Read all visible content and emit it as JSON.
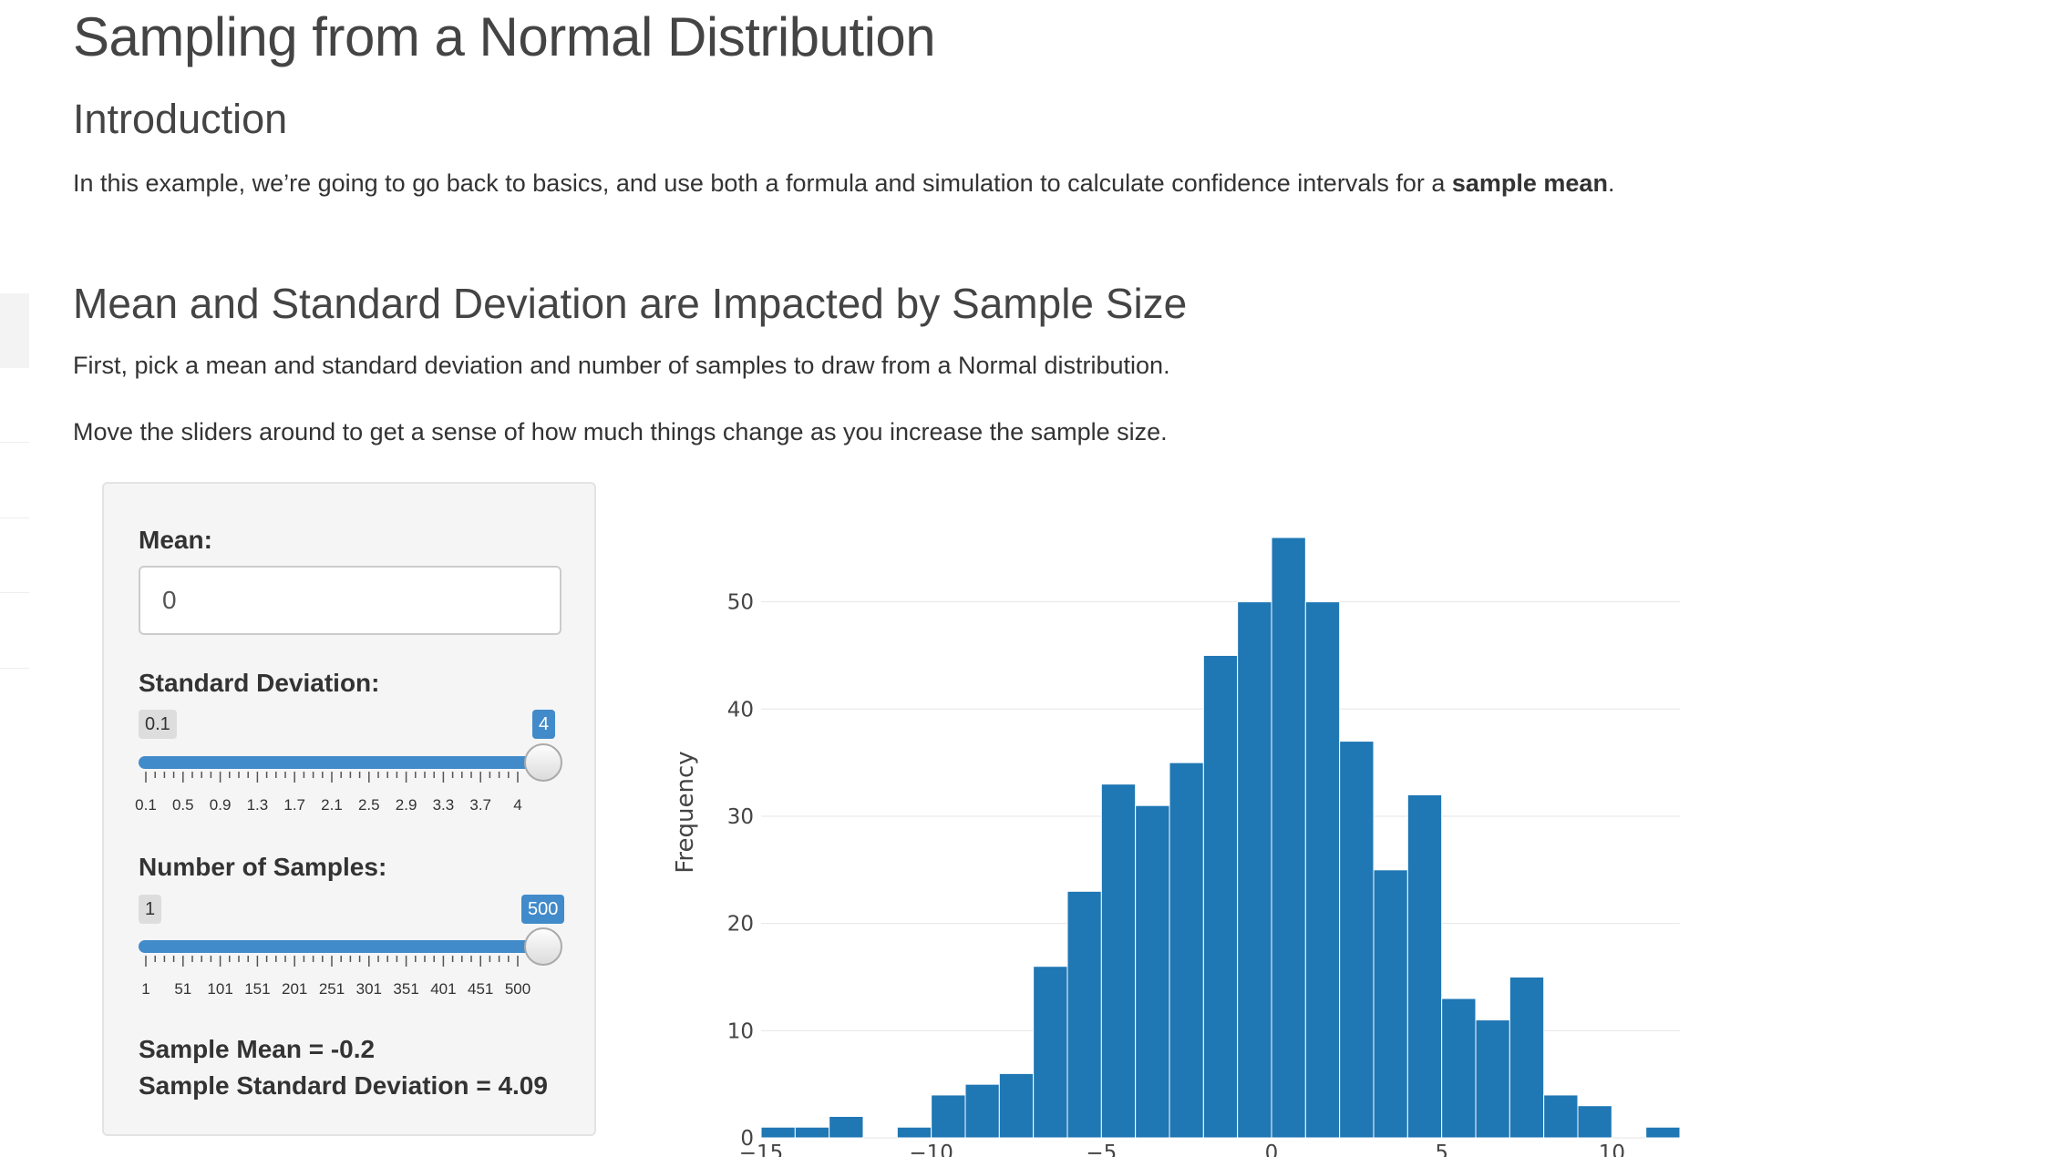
{
  "page": {
    "title": "Sampling from a Normal Distribution",
    "intro_heading": "Introduction",
    "intro_text_pre": "In this example, we’re going to go back to basics, and use both a formula and simulation to calculate confidence intervals for a ",
    "intro_text_bold": "sample mean",
    "intro_text_post": ".",
    "section_heading": "Mean and Standard Deviation are Impacted by Sample Size",
    "section_p1": "First, pick a mean and standard deviation and number of samples to draw from a Normal distribution.",
    "section_p2": "Move the sliders around to get a sense of how much things change as you increase the sample size."
  },
  "panel": {
    "mean_label": "Mean:",
    "mean_value": "0",
    "sd_slider": {
      "label": "Standard Deviation:",
      "min": "0.1",
      "max": "4",
      "value": "4",
      "fraction": 1.0,
      "tick_labels": [
        "0.1",
        "0.5",
        "0.9",
        "1.3",
        "1.7",
        "2.1",
        "2.5",
        "2.9",
        "3.3",
        "3.7",
        "4"
      ]
    },
    "n_slider": {
      "label": "Number of Samples:",
      "min": "1",
      "max": "500",
      "value": "500",
      "fraction": 1.0,
      "tick_labels": [
        "1",
        "51",
        "101",
        "151",
        "201",
        "251",
        "301",
        "351",
        "401",
        "451",
        "500"
      ]
    },
    "sample_mean_text": "Sample Mean = -0.2",
    "sample_sd_text": "Sample Standard Deviation = 4.09"
  },
  "colors": {
    "bar": "#1f77b4",
    "slider_accent": "#428bca"
  },
  "chart_data": {
    "type": "bar",
    "ylabel": "Frequency",
    "xlabel": "",
    "xlim": [
      -15,
      12
    ],
    "ylim": [
      0,
      56
    ],
    "bin_width": 1,
    "x_ticks": [
      -15,
      -10,
      -5,
      0,
      5,
      10
    ],
    "x_tick_labels": [
      "−15",
      "−10",
      "−5",
      "0",
      "5",
      "10"
    ],
    "y_ticks": [
      0,
      10,
      20,
      30,
      40,
      50
    ],
    "bins": [
      {
        "x0": -15,
        "count": 1
      },
      {
        "x0": -14,
        "count": 1
      },
      {
        "x0": -13,
        "count": 2
      },
      {
        "x0": -12,
        "count": 0
      },
      {
        "x0": -11,
        "count": 1
      },
      {
        "x0": -10,
        "count": 4
      },
      {
        "x0": -9,
        "count": 5
      },
      {
        "x0": -8,
        "count": 6
      },
      {
        "x0": -7,
        "count": 16
      },
      {
        "x0": -6,
        "count": 23
      },
      {
        "x0": -5,
        "count": 33
      },
      {
        "x0": -4,
        "count": 31
      },
      {
        "x0": -3,
        "count": 35
      },
      {
        "x0": -2,
        "count": 45
      },
      {
        "x0": -1,
        "count": 50
      },
      {
        "x0": 0,
        "count": 56
      },
      {
        "x0": 1,
        "count": 50
      },
      {
        "x0": 2,
        "count": 37
      },
      {
        "x0": 3,
        "count": 25
      },
      {
        "x0": 4,
        "count": 32
      },
      {
        "x0": 5,
        "count": 13
      },
      {
        "x0": 6,
        "count": 11
      },
      {
        "x0": 7,
        "count": 15
      },
      {
        "x0": 8,
        "count": 4
      },
      {
        "x0": 9,
        "count": 3
      },
      {
        "x0": 10,
        "count": 0
      },
      {
        "x0": 11,
        "count": 1
      }
    ]
  }
}
